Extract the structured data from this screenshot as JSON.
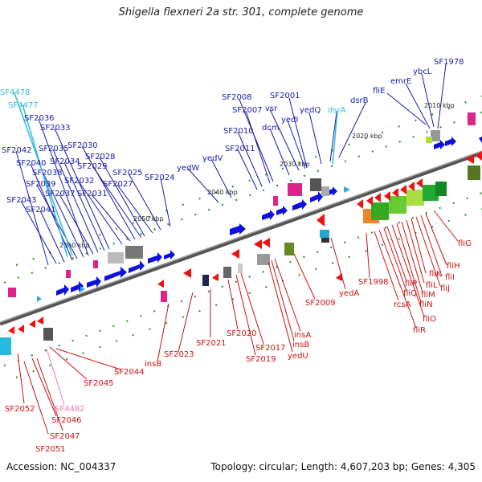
{
  "title": "Shigella flexneri 2a str. 301, complete genome",
  "footer": {
    "accession": "Accession: NC_004337",
    "meta": "Topology: circular; Length: 4,607,203 bp; Genes: 4,305"
  },
  "scale_labels": [
    "2010 kbp",
    "2020 kbp",
    "2030 kbp",
    "2040 kbp",
    "2050 kbp",
    "2060 kbp"
  ],
  "colors": {
    "forward_label": "#1a1aa8",
    "reverse_label": "#cc1111",
    "highlight_label": "#33bbdd",
    "pink_label": "#ee77bb",
    "backbone": "#777777",
    "tick": "#2a8a2a"
  },
  "top_labels": [
    {
      "text": "SF1978"
    },
    {
      "text": "ybcL"
    },
    {
      "text": "emrE"
    },
    {
      "text": "fliE"
    },
    {
      "text": "dsrB"
    },
    {
      "text": "dsrA"
    },
    {
      "text": "yedQ"
    },
    {
      "text": "SF2001"
    },
    {
      "text": "vsr"
    },
    {
      "text": "yedI"
    },
    {
      "text": "SF2008"
    },
    {
      "text": "SF2007"
    },
    {
      "text": "dcm"
    },
    {
      "text": "SF2010"
    },
    {
      "text": "SF2011"
    },
    {
      "text": "yedV"
    },
    {
      "text": "yedW"
    },
    {
      "text": "SF2024"
    },
    {
      "text": "SF2025"
    },
    {
      "text": "SF2027"
    },
    {
      "text": "SF2028"
    },
    {
      "text": "SF2029"
    },
    {
      "text": "SF2030"
    },
    {
      "text": "SF2031"
    },
    {
      "text": "SF2032"
    },
    {
      "text": "SF2033"
    },
    {
      "text": "SF2034"
    },
    {
      "text": "SF2035"
    },
    {
      "text": "SF2036"
    },
    {
      "text": "SF4477"
    },
    {
      "text": "SF4478"
    },
    {
      "text": "SF2037"
    },
    {
      "text": "SF2038"
    },
    {
      "text": "SF2039"
    },
    {
      "text": "SF2040"
    },
    {
      "text": "SF2041"
    },
    {
      "text": "SF2042"
    },
    {
      "text": "SF2043"
    }
  ],
  "bottom_labels": [
    {
      "text": "fliG"
    },
    {
      "text": "fliH"
    },
    {
      "text": "fliI"
    },
    {
      "text": "fliJ"
    },
    {
      "text": "fliK"
    },
    {
      "text": "fliL"
    },
    {
      "text": "fliM"
    },
    {
      "text": "fliN"
    },
    {
      "text": "fliO"
    },
    {
      "text": "fliP"
    },
    {
      "text": "fliQ"
    },
    {
      "text": "fliR"
    },
    {
      "text": "rcsA"
    },
    {
      "text": "SF1998"
    },
    {
      "text": "yedA"
    },
    {
      "text": "SF2009"
    },
    {
      "text": "insA"
    },
    {
      "text": "insB"
    },
    {
      "text": "yedU"
    },
    {
      "text": "SF2017"
    },
    {
      "text": "SF2019"
    },
    {
      "text": "SF2020"
    },
    {
      "text": "SF2021"
    },
    {
      "text": "SF2023"
    },
    {
      "text": "insB"
    },
    {
      "text": "SF2044"
    },
    {
      "text": "SF2045"
    },
    {
      "text": "SF4482"
    },
    {
      "text": "SF2046"
    },
    {
      "text": "SF2047"
    },
    {
      "text": "SF2052"
    },
    {
      "text": "SF2051"
    }
  ]
}
